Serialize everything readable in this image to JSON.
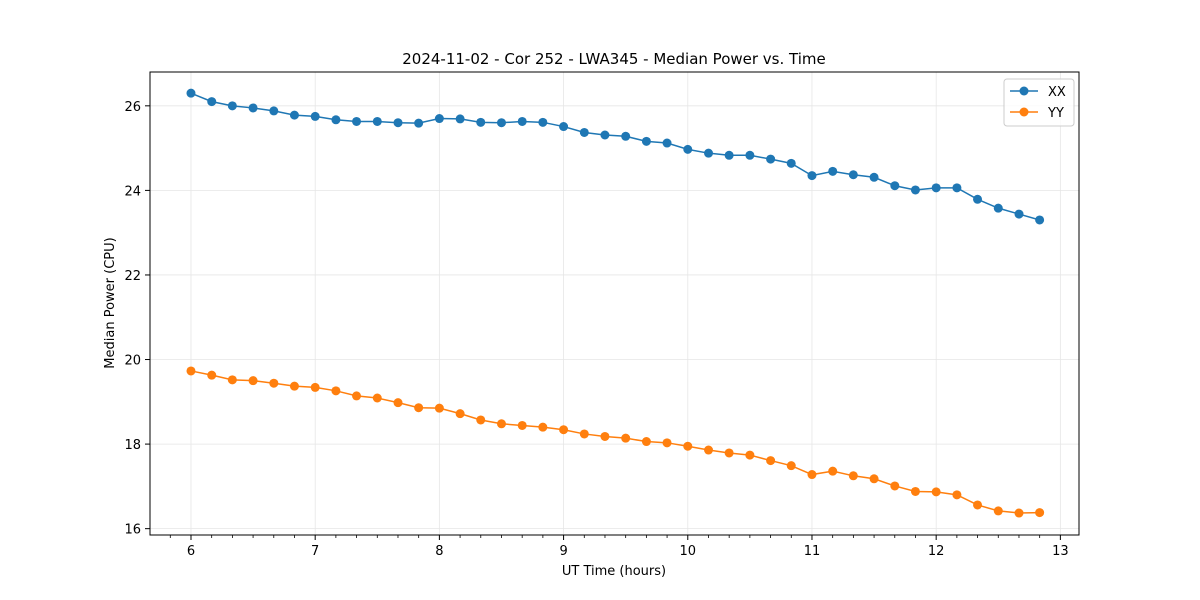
{
  "chart_data": {
    "type": "line",
    "title": "2024-11-02 - Cor 252 - LWA345 - Median Power vs. Time",
    "xlabel": "UT Time (hours)",
    "ylabel": "Median Power (CPU)",
    "xlim": [
      5.67,
      13.15
    ],
    "ylim": [
      15.85,
      26.8
    ],
    "xticks": [
      6,
      7,
      8,
      9,
      10,
      11,
      12,
      13
    ],
    "yticks": [
      16,
      18,
      20,
      22,
      24,
      26
    ],
    "grid": true,
    "legend_position": "top-right",
    "x": [
      6.0,
      6.167,
      6.333,
      6.5,
      6.667,
      6.833,
      7.0,
      7.167,
      7.333,
      7.5,
      7.667,
      7.833,
      8.0,
      8.167,
      8.333,
      8.5,
      8.667,
      8.833,
      9.0,
      9.167,
      9.333,
      9.5,
      9.667,
      9.833,
      10.0,
      10.167,
      10.333,
      10.5,
      10.667,
      10.833,
      11.0,
      11.167,
      11.333,
      11.5,
      11.667,
      11.833,
      12.0,
      12.167,
      12.333,
      12.5,
      12.667,
      12.833
    ],
    "series": [
      {
        "name": "XX",
        "color": "#1f77b4",
        "values": [
          26.3,
          26.1,
          26.0,
          25.95,
          25.88,
          25.78,
          25.75,
          25.67,
          25.63,
          25.63,
          25.6,
          25.59,
          25.7,
          25.69,
          25.61,
          25.6,
          25.63,
          25.61,
          25.51,
          25.37,
          25.31,
          25.28,
          25.16,
          25.12,
          24.97,
          24.88,
          24.83,
          24.83,
          24.74,
          24.64,
          24.35,
          24.45,
          24.37,
          24.31,
          24.11,
          24.01,
          24.06,
          24.06,
          23.79,
          23.58,
          23.44,
          23.3
        ]
      },
      {
        "name": "YY",
        "color": "#ff7f0e",
        "values": [
          19.73,
          19.63,
          19.52,
          19.5,
          19.44,
          19.37,
          19.34,
          19.26,
          19.14,
          19.09,
          18.98,
          18.86,
          18.85,
          18.72,
          18.57,
          18.48,
          18.44,
          18.4,
          18.34,
          18.24,
          18.18,
          18.14,
          18.06,
          18.03,
          17.95,
          17.86,
          17.79,
          17.74,
          17.61,
          17.49,
          17.28,
          17.36,
          17.25,
          17.18,
          17.01,
          16.88,
          16.87,
          16.8,
          16.56,
          16.42,
          16.37,
          16.38
        ]
      }
    ]
  },
  "colors": {
    "grid": "#e6e6e6",
    "axis": "#000000"
  }
}
